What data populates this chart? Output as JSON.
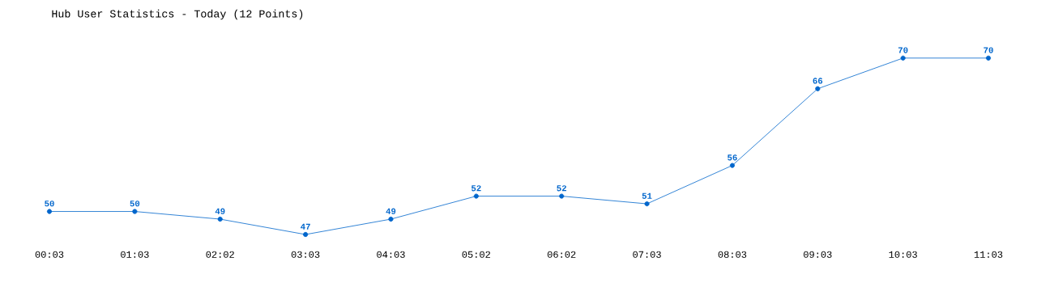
{
  "chart_data": {
    "type": "line",
    "title": "Hub User Statistics - Today (12 Points)",
    "categories": [
      "00:03",
      "01:03",
      "02:02",
      "03:03",
      "04:03",
      "05:02",
      "06:02",
      "07:03",
      "08:03",
      "09:03",
      "10:03",
      "11:03"
    ],
    "values": [
      50,
      50,
      49,
      47,
      49,
      52,
      52,
      51,
      56,
      66,
      70,
      70
    ],
    "color": "#0066cc",
    "marker": "circle",
    "data_labels": true,
    "tick_labels": "x"
  }
}
